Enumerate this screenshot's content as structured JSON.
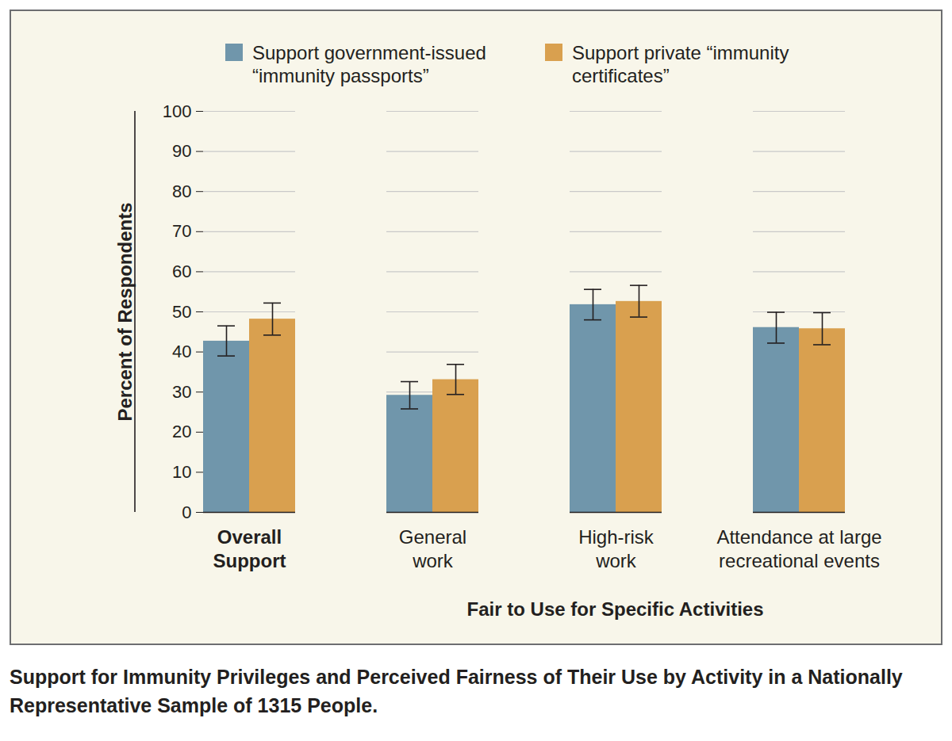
{
  "chart_data": {
    "type": "bar",
    "title": "Support for Immunity Privileges and Perceived Fairness of Their Use by Activity in a Nationally Representative Sample of 1315 People.",
    "y_label": "Percent of Respondents",
    "categories": [
      "Overall Support",
      "General work",
      "High-risk work",
      "Attendance at large recreational events"
    ],
    "category_group": {
      "label": "Fair to Use for Specific Activities",
      "categories": [
        "General work",
        "High-risk work",
        "Attendance at large recreational events"
      ]
    },
    "series": [
      {
        "name": "Support government-issued “immunity passports”",
        "color": "#7096ab",
        "values": [
          42.7,
          29.2,
          51.8,
          46.1
        ],
        "error_low": [
          39.0,
          25.8,
          48.0,
          42.2
        ],
        "error_high": [
          46.5,
          32.6,
          55.6,
          49.9
        ]
      },
      {
        "name": "Support private “immunity certificates”",
        "color": "#d9a04f",
        "values": [
          48.2,
          33.1,
          52.6,
          45.8
        ],
        "error_low": [
          44.2,
          29.4,
          48.7,
          41.8
        ],
        "error_high": [
          52.2,
          36.9,
          56.6,
          49.8
        ]
      }
    ],
    "ylim": [
      0,
      100
    ],
    "yticks": [
      0,
      10,
      20,
      30,
      40,
      50,
      60,
      70,
      80,
      90,
      100
    ],
    "grid": true,
    "legend": "top"
  }
}
